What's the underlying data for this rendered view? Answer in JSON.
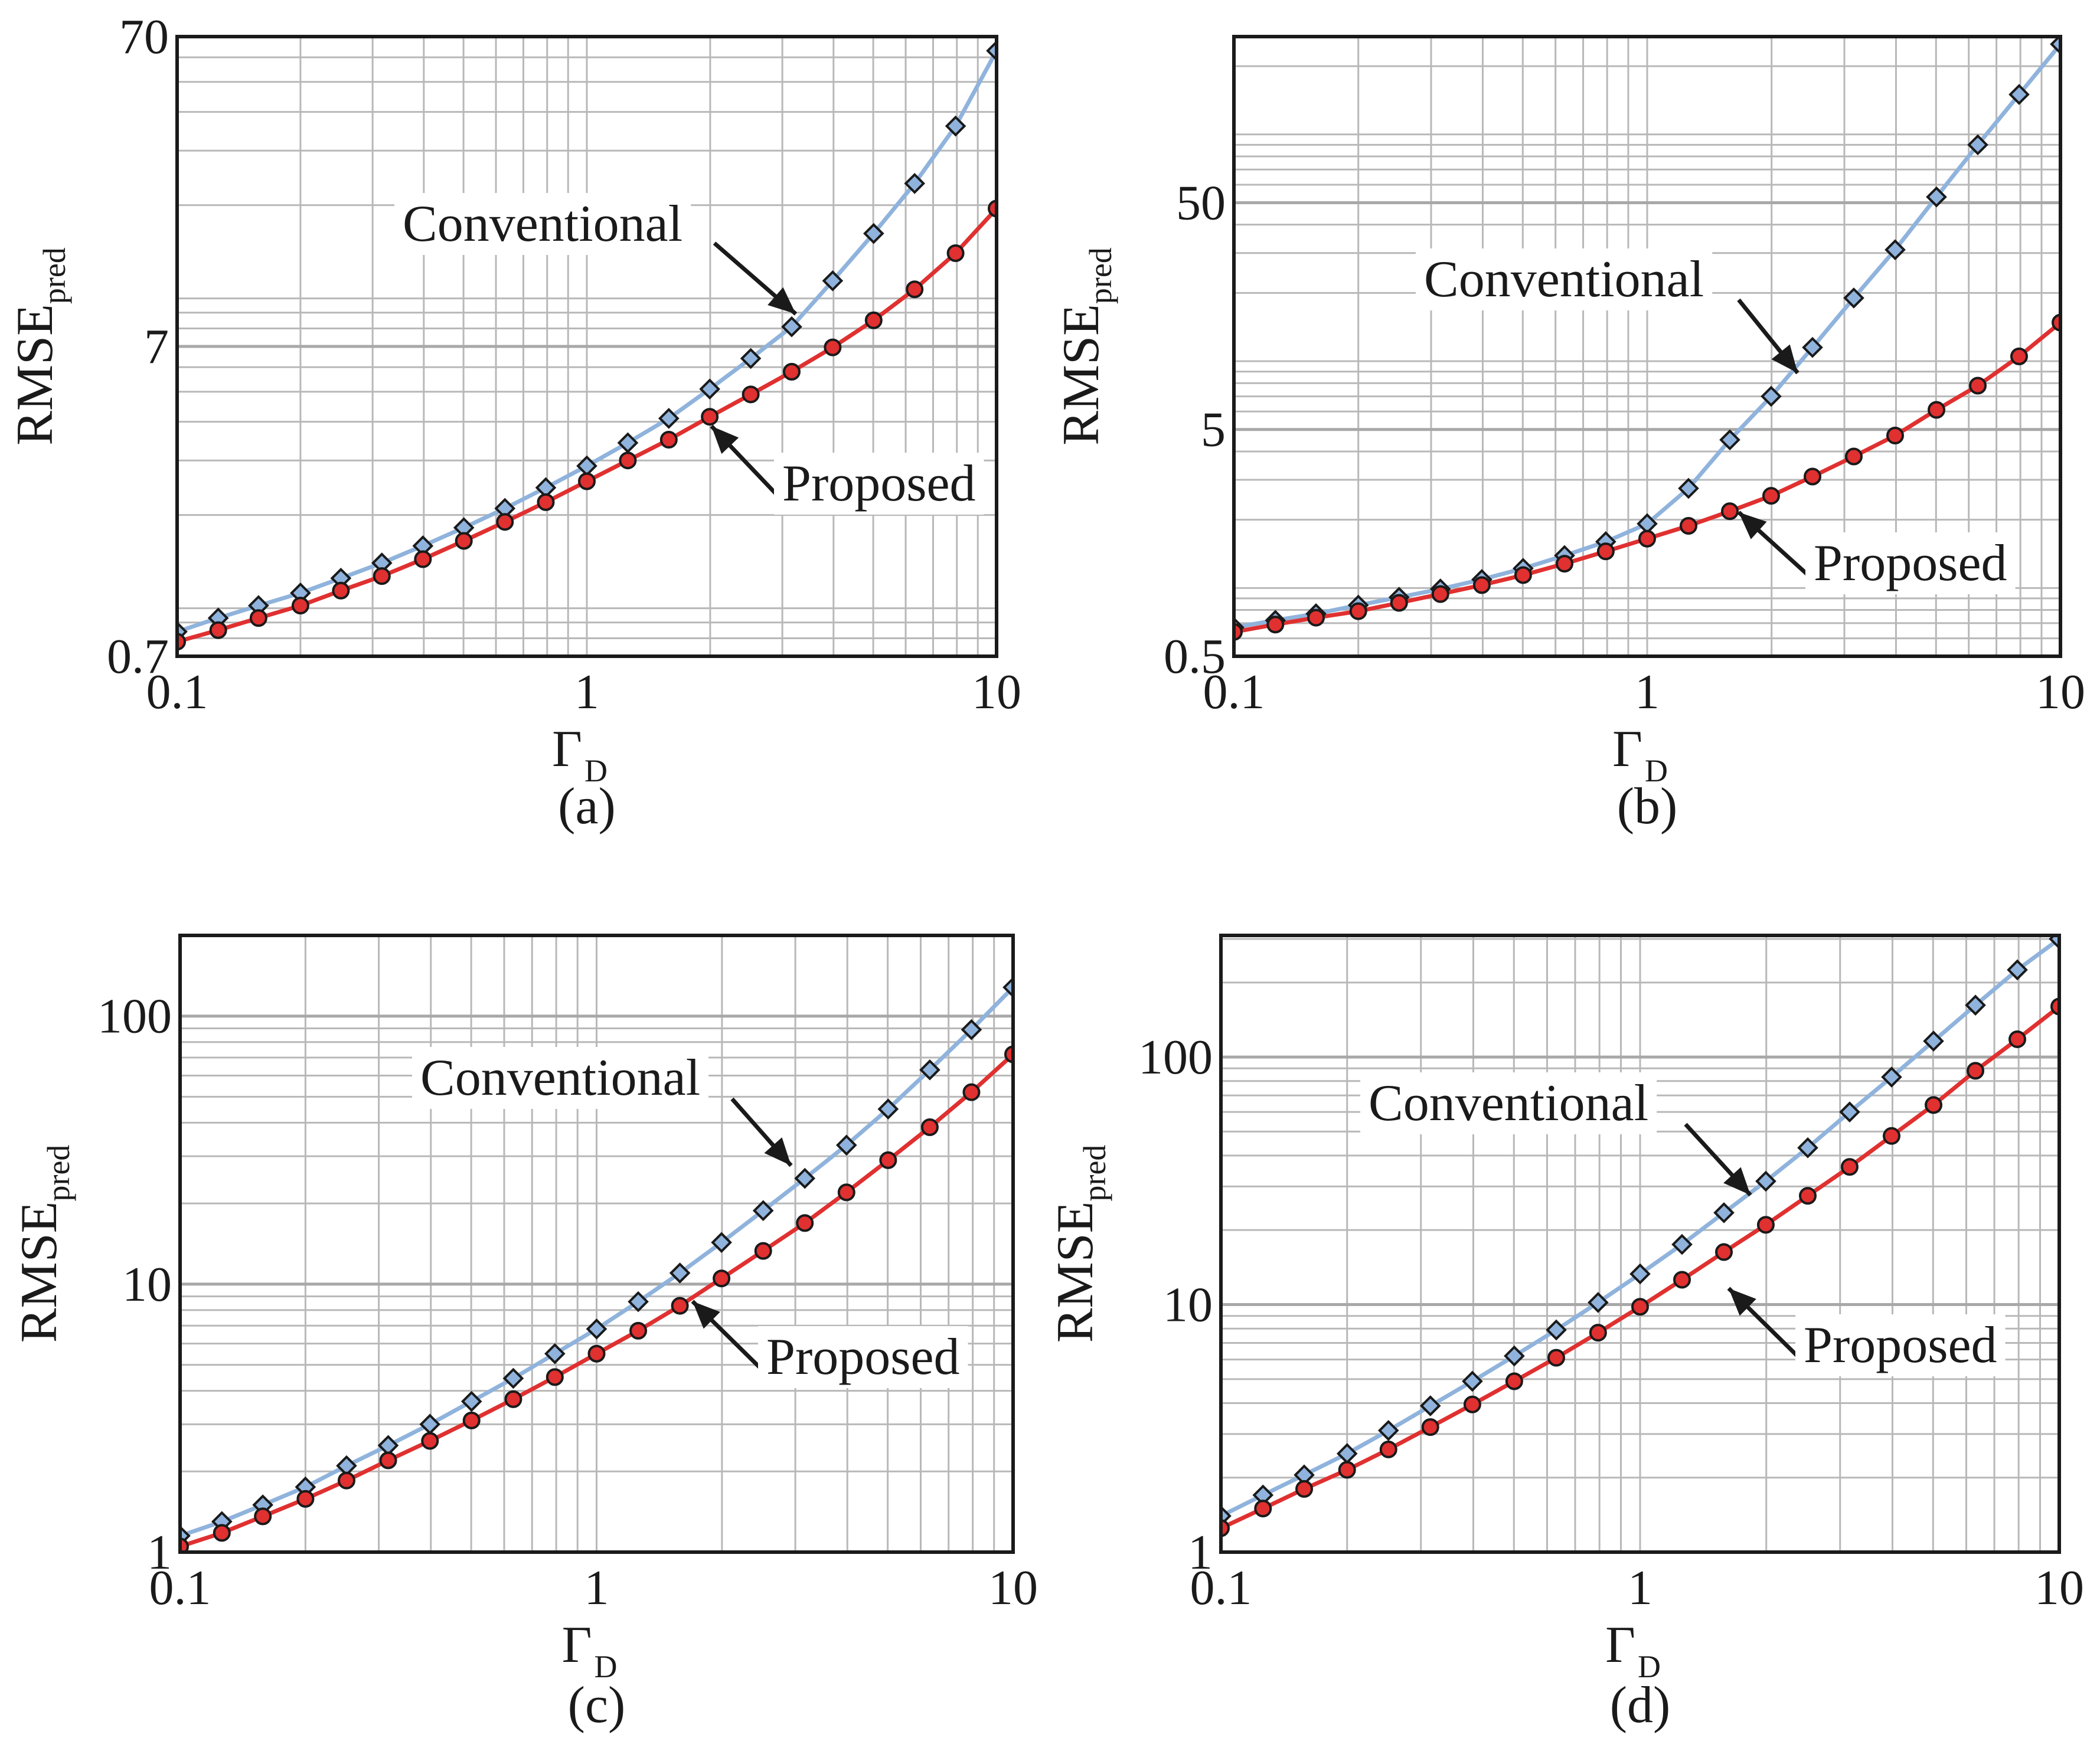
{
  "chart_data": [
    {
      "type": "line",
      "panel": "(a)",
      "caption": "(a)",
      "xscale": "log",
      "yscale": "log",
      "xlim": [
        0.1,
        10
      ],
      "ylim": [
        0.7,
        70
      ],
      "xlabel": "Γ",
      "xlabel_sub": "D",
      "ylabel": "RMSE",
      "ylabel_sub": "pred",
      "xticks": [
        {
          "v": 0.1,
          "label": "0.1"
        },
        {
          "v": 1,
          "label": "1"
        },
        {
          "v": 10,
          "label": "10"
        }
      ],
      "yticks": [
        {
          "v": 0.7,
          "label": "0.7"
        },
        {
          "v": 7,
          "label": "7"
        },
        {
          "v": 70,
          "label": "70"
        }
      ],
      "grid": true,
      "x": [
        0.1,
        0.126,
        0.158,
        0.2,
        0.251,
        0.316,
        0.398,
        0.501,
        0.631,
        0.794,
        1.0,
        1.259,
        1.585,
        1.995,
        2.512,
        3.162,
        3.981,
        5.012,
        6.31,
        7.943,
        10.0
      ],
      "series": [
        {
          "name": "Conventional",
          "color": "#8fb3dc",
          "marker": "diamond",
          "values": [
            0.84,
            0.93,
            1.02,
            1.12,
            1.25,
            1.4,
            1.59,
            1.82,
            2.1,
            2.45,
            2.88,
            3.42,
            4.1,
            5.1,
            6.4,
            8.1,
            11.4,
            16.2,
            23.5,
            36.0,
            63.0
          ]
        },
        {
          "name": "Proposed",
          "color": "#e03030",
          "marker": "circle",
          "values": [
            0.78,
            0.85,
            0.93,
            1.02,
            1.14,
            1.27,
            1.44,
            1.65,
            1.9,
            2.2,
            2.57,
            3.0,
            3.5,
            4.15,
            4.9,
            5.8,
            6.95,
            8.5,
            10.7,
            14.0,
            19.5
          ]
        }
      ],
      "annotations": [
        {
          "text": "Conventional",
          "target": "Conventional"
        },
        {
          "text": "Proposed",
          "target": "Proposed"
        }
      ]
    },
    {
      "type": "line",
      "panel": "(b)",
      "caption": "(b)",
      "xscale": "log",
      "yscale": "log",
      "xlim": [
        0.1,
        10
      ],
      "ylim": [
        0.5,
        270
      ],
      "xlabel": "Γ",
      "xlabel_sub": "D",
      "ylabel": "RMSE",
      "ylabel_sub": "pred",
      "xticks": [
        {
          "v": 0.1,
          "label": "0.1"
        },
        {
          "v": 1,
          "label": "1"
        },
        {
          "v": 10,
          "label": "10"
        }
      ],
      "yticks": [
        {
          "v": 0.5,
          "label": "0.5"
        },
        {
          "v": 5,
          "label": "5"
        },
        {
          "v": 50,
          "label": "50"
        }
      ],
      "grid": true,
      "x": [
        0.1,
        0.126,
        0.158,
        0.2,
        0.251,
        0.316,
        0.398,
        0.501,
        0.631,
        0.794,
        1.0,
        1.259,
        1.585,
        1.995,
        2.512,
        3.162,
        3.981,
        5.012,
        6.31,
        7.943,
        10.0
      ],
      "series": [
        {
          "name": "Conventional",
          "color": "#8fb3dc",
          "marker": "diamond",
          "values": [
            0.67,
            0.72,
            0.77,
            0.84,
            0.91,
            0.99,
            1.09,
            1.22,
            1.39,
            1.6,
            1.92,
            2.75,
            4.5,
            7.0,
            11.5,
            19.0,
            31.0,
            53.0,
            90.0,
            150.0,
            250.0
          ]
        },
        {
          "name": "Proposed",
          "color": "#e03030",
          "marker": "circle",
          "values": [
            0.64,
            0.69,
            0.74,
            0.79,
            0.86,
            0.94,
            1.03,
            1.14,
            1.28,
            1.45,
            1.65,
            1.88,
            2.18,
            2.55,
            3.1,
            3.8,
            4.7,
            6.1,
            7.8,
            10.5,
            14.8
          ]
        }
      ],
      "annotations": [
        {
          "text": "Conventional",
          "target": "Conventional"
        },
        {
          "text": "Proposed",
          "target": "Proposed"
        }
      ]
    },
    {
      "type": "line",
      "panel": "(c)",
      "caption": "(c)",
      "xscale": "log",
      "yscale": "log",
      "xlim": [
        0.1,
        10
      ],
      "ylim": [
        1,
        200
      ],
      "xlabel": "Γ",
      "xlabel_sub": "D",
      "ylabel": "RMSE",
      "ylabel_sub": "pred",
      "xticks": [
        {
          "v": 0.1,
          "label": "0.1"
        },
        {
          "v": 1,
          "label": "1"
        },
        {
          "v": 10,
          "label": "10"
        }
      ],
      "yticks": [
        {
          "v": 1,
          "label": "1"
        },
        {
          "v": 10,
          "label": "10"
        },
        {
          "v": 100,
          "label": "100"
        }
      ],
      "grid": true,
      "x": [
        0.1,
        0.126,
        0.158,
        0.2,
        0.251,
        0.316,
        0.398,
        0.501,
        0.631,
        0.794,
        1.0,
        1.259,
        1.585,
        1.995,
        2.512,
        3.162,
        3.981,
        5.012,
        6.31,
        7.943,
        10.0
      ],
      "series": [
        {
          "name": "Conventional",
          "color": "#8fb3dc",
          "marker": "diamond",
          "values": [
            1.15,
            1.3,
            1.5,
            1.75,
            2.1,
            2.5,
            3.0,
            3.65,
            4.45,
            5.5,
            6.8,
            8.6,
            11.0,
            14.3,
            18.8,
            24.8,
            33.0,
            45.0,
            63.0,
            89.0,
            128.0
          ]
        },
        {
          "name": "Proposed",
          "color": "#e03030",
          "marker": "circle",
          "values": [
            1.05,
            1.18,
            1.36,
            1.58,
            1.85,
            2.2,
            2.6,
            3.1,
            3.72,
            4.5,
            5.5,
            6.7,
            8.3,
            10.5,
            13.3,
            16.9,
            22.0,
            29.0,
            38.5,
            52.0,
            72.0
          ]
        }
      ],
      "annotations": [
        {
          "text": "Conventional",
          "target": "Conventional"
        },
        {
          "text": "Proposed",
          "target": "Proposed"
        }
      ]
    },
    {
      "type": "line",
      "panel": "(d)",
      "caption": "(d)",
      "xscale": "log",
      "yscale": "log",
      "xlim": [
        0.1,
        10
      ],
      "ylim": [
        1,
        310
      ],
      "xlabel": "Γ",
      "xlabel_sub": "D",
      "ylabel": "RMSE",
      "ylabel_sub": "pred",
      "xticks": [
        {
          "v": 0.1,
          "label": "0.1"
        },
        {
          "v": 1,
          "label": "1"
        },
        {
          "v": 10,
          "label": "10"
        }
      ],
      "yticks": [
        {
          "v": 1,
          "label": "1"
        },
        {
          "v": 10,
          "label": "10"
        },
        {
          "v": 100,
          "label": "100"
        }
      ],
      "grid": true,
      "x": [
        0.1,
        0.126,
        0.158,
        0.2,
        0.251,
        0.316,
        0.398,
        0.501,
        0.631,
        0.794,
        1.0,
        1.259,
        1.585,
        1.995,
        2.512,
        3.162,
        3.981,
        5.012,
        6.31,
        7.943,
        10.0
      ],
      "series": [
        {
          "name": "Conventional",
          "color": "#8fb3dc",
          "marker": "diamond",
          "values": [
            1.4,
            1.7,
            2.05,
            2.5,
            3.1,
            3.9,
            4.9,
            6.2,
            7.9,
            10.2,
            13.3,
            17.5,
            23.5,
            31.5,
            43.0,
            60.0,
            83.0,
            116.0,
            162.0,
            225.0,
            300.0
          ]
        },
        {
          "name": "Proposed",
          "color": "#e03030",
          "marker": "circle",
          "values": [
            1.25,
            1.5,
            1.8,
            2.15,
            2.6,
            3.2,
            3.95,
            4.9,
            6.1,
            7.7,
            9.8,
            12.6,
            16.3,
            21.0,
            27.5,
            36.0,
            48.0,
            64.0,
            88.0,
            118.0,
            160.0
          ]
        }
      ],
      "annotations": [
        {
          "text": "Conventional",
          "target": "Conventional"
        },
        {
          "text": "Proposed",
          "target": "Proposed"
        }
      ]
    }
  ]
}
